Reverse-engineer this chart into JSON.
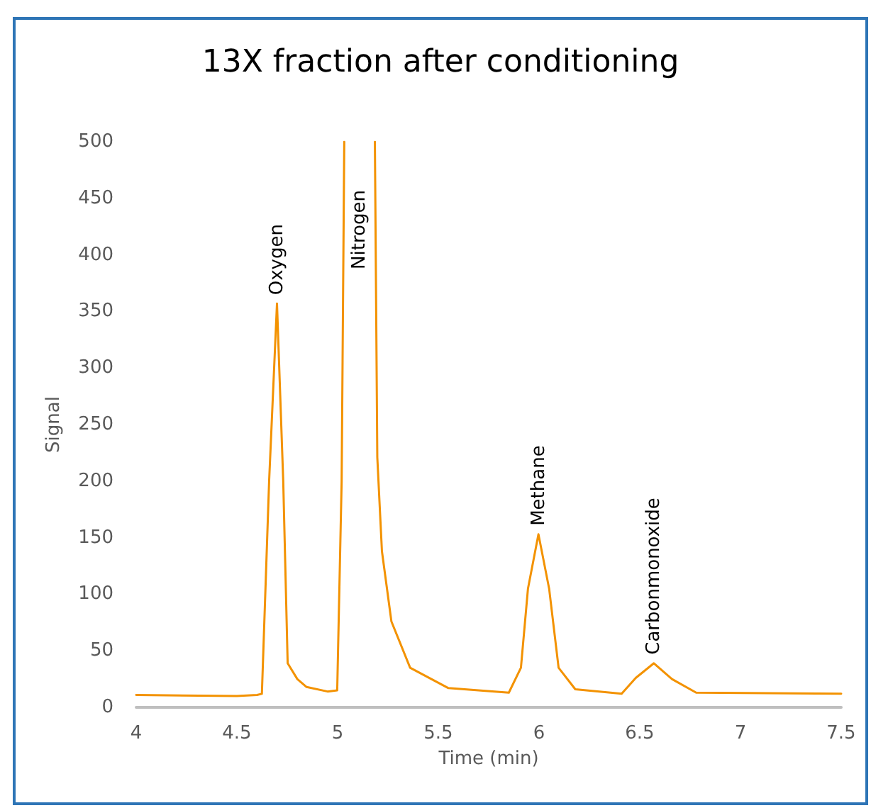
{
  "chart_data": {
    "type": "line",
    "title": "13X fraction after conditioning",
    "xlabel": "Time (min)",
    "ylabel": "Signal",
    "x": [
      4.0,
      4.5,
      4.6,
      4.624,
      4.66,
      4.699,
      4.73,
      4.752,
      4.8,
      4.846,
      4.95,
      4.998,
      5.02,
      5.033,
      5.11,
      5.185,
      5.197,
      5.22,
      5.267,
      5.36,
      5.55,
      5.78,
      5.85,
      5.91,
      5.945,
      5.997,
      6.05,
      6.097,
      6.18,
      6.41,
      6.48,
      6.57,
      6.66,
      6.78,
      7.5
    ],
    "series": [
      {
        "color": "#f39200",
        "values": [
          11,
          10,
          11,
          12,
          200,
          357,
          200,
          39,
          25,
          18,
          14,
          15,
          200,
          500,
          null,
          500,
          221,
          138,
          76,
          35,
          17,
          14,
          13,
          35,
          105,
          153,
          105,
          35,
          16,
          12,
          26,
          39,
          25,
          13,
          12
        ]
      }
    ],
    "xlim": [
      4,
      7.5
    ],
    "xticks": [
      4,
      4.5,
      5,
      5.5,
      6,
      6.5,
      7,
      7.5
    ],
    "ylim": [
      0,
      500
    ],
    "yticks": [
      0,
      50,
      100,
      150,
      200,
      250,
      300,
      350,
      400,
      450,
      500
    ],
    "grid": false,
    "marker": "none",
    "line_style": "solid",
    "annotations": [
      {
        "text": "Oxygen",
        "x": 4.7,
        "y": 357
      },
      "Nitrogen",
      {
        "text": "Methane",
        "x": 6.0,
        "y": 153
      },
      {
        "text": "Carbonmonoxide",
        "x": 6.57,
        "y": 39
      }
    ]
  }
}
